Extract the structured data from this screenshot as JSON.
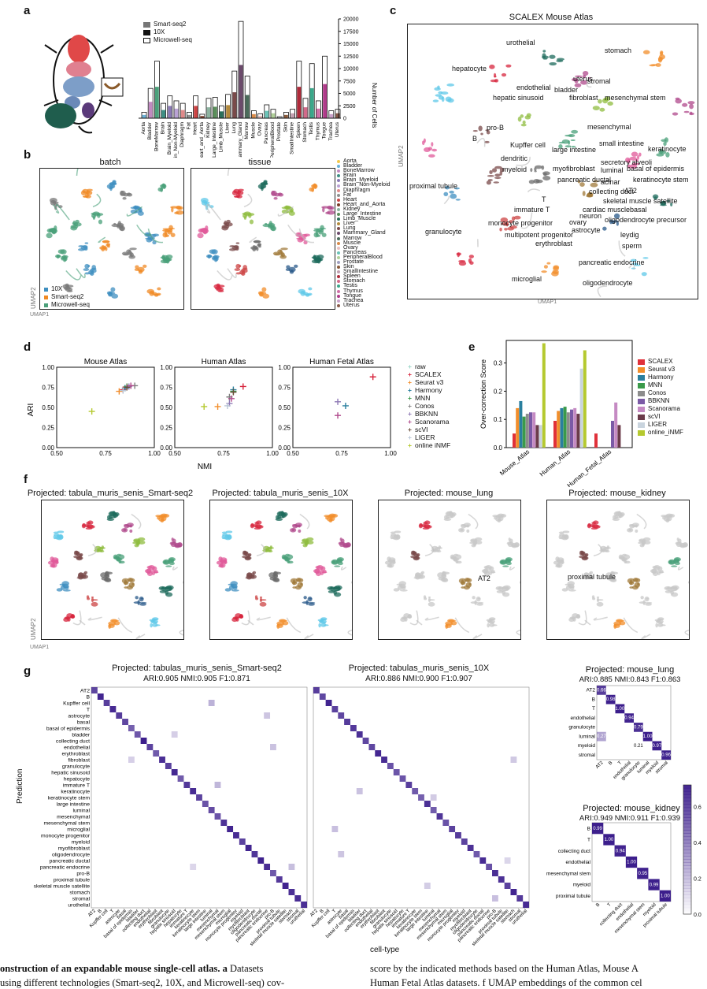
{
  "panels": {
    "a": "a",
    "b": "b",
    "c": "c",
    "d": "d",
    "e": "e",
    "f": "f",
    "g": "g"
  },
  "panel_a": {
    "legend": [
      "Smart-seq2",
      "10X",
      "Microwell-seq"
    ],
    "ylabel": "Number of Cells",
    "yticks": [
      "0",
      "2500",
      "5000",
      "7500",
      "10000",
      "12500",
      "15000",
      "17500",
      "20000"
    ],
    "tissues": [
      "Aorta",
      "Bladder",
      "BoneMarrow",
      "Brain",
      "Brain_Myeloid",
      "Brain_Non-Myeloid",
      "Diaphragm",
      "Fat",
      "Heart",
      "Heart_and_Aorta",
      "Kidney",
      "Large_Intestine",
      "Limb_Muscle",
      "Liver",
      "Lung",
      "Mammary_Gland",
      "Marrow",
      "Muscle",
      "Ovary",
      "Pancreas",
      "PeripheralBlood",
      "Prostate",
      "Skin",
      "SmallIntestine",
      "Spleen",
      "Stomach",
      "Testis",
      "Thymus",
      "Tongue",
      "Trachea",
      "Uterus"
    ]
  },
  "panel_b": {
    "titles": [
      "batch",
      "tissue"
    ],
    "batch_legend": [
      "10X",
      "Smart-seq2",
      "Microwell-seq"
    ],
    "xlabel": "UMAP1",
    "ylabel": "UMAP2",
    "tissue_legend": [
      "Aorta",
      "Bladder",
      "BoneMarrow",
      "Brain",
      "Brain_Myeloid",
      "Brain_Non-Myeloid",
      "Diaphragm",
      "Fat",
      "Heart",
      "Heart_and_Aorta",
      "Kidney",
      "Large_Intestine",
      "Limb_Muscle",
      "Liver",
      "Lung",
      "Mammary_Gland",
      "Marrow",
      "Muscle",
      "Ovary",
      "Pancreas",
      "PeripheralBlood",
      "Prostate",
      "Skin",
      "SmallIntestine",
      "Spleen",
      "Stomach",
      "Testis",
      "Thymus",
      "Tongue",
      "Trachea",
      "Uterus"
    ]
  },
  "panel_c": {
    "title": "SCALEX Mouse Atlas",
    "xlabel": "UMAP1",
    "ylabel": "UMAP2",
    "labels": [
      "urothelial",
      "stomach",
      "hepatocyte",
      "endothelial",
      "uterus",
      "stromal",
      "bladder",
      "fibroblast",
      "mesenchymal stem",
      "hepatic sinusoid",
      "mesenchymal",
      "pro-B",
      "B",
      "Kupffer cell",
      "small intestine",
      "large intestine",
      "keratinocyte",
      "secretory alveoli",
      "dendritic",
      "myofibroblast",
      "luminal",
      "basal of epidermis",
      "myeloid",
      "pancreatic ductal",
      "acinar",
      "keratinocyte stem",
      "proximal tubule",
      "collecting duct",
      "AT2",
      "T",
      "skeletal muscle satellite",
      "cardiac muscle",
      "immature T",
      "neuron",
      "basal",
      "ovary",
      "oligodendrocyte precursor",
      "monocyte progenitor",
      "astrocyte",
      "granulocyte",
      "leydig",
      "multipotent progenitor",
      "sperm",
      "erythroblast",
      "pancreatic endocrine",
      "microglial",
      "oligodendrocyte"
    ]
  },
  "panel_d": {
    "titles": [
      "Mouse Atlas",
      "Human Atlas",
      "Human Fetal Atlas"
    ],
    "xlabel": "NMI",
    "ylabel": "ARI",
    "xticks": [
      "0.50",
      "0.75",
      "1.00"
    ],
    "yticks": [
      "0.00",
      "0.25",
      "0.50",
      "0.75",
      "1.00"
    ],
    "legend": [
      "raw",
      "SCALEX",
      "Seurat v3",
      "Harmony",
      "MNN",
      "Conos",
      "BBKNN",
      "Scanorama",
      "scVI",
      "LIGER",
      "online iNMF"
    ],
    "colors": [
      "#9bd7c8",
      "#d7263d",
      "#f28e2b",
      "#2a7f9e",
      "#3a9a4a",
      "#7f7f7f",
      "#8e79b5",
      "#b04a8c",
      "#6b4f3a",
      "#b9c6d6",
      "#b5c92f"
    ]
  },
  "panel_e": {
    "ylabel": "Over-correction Score",
    "yticks": [
      "0.0",
      "0.1",
      "0.2",
      "0.3"
    ],
    "categories": [
      "Mouse_Atlas",
      "Human_Atlas",
      "Human_Fetal_Atlas"
    ],
    "legend": [
      "SCALEX",
      "Seurat v3",
      "Harmony",
      "MNN",
      "Conos",
      "BBKNN",
      "Scanorama",
      "scVI",
      "LIGER",
      "online_iNMF"
    ],
    "colors": [
      "#e0313a",
      "#f28e2b",
      "#2a7f9e",
      "#3a9a4a",
      "#8c8c8c",
      "#7b5aa6",
      "#c58ac3",
      "#6b3b4a",
      "#c9d4de",
      "#b5c92f"
    ]
  },
  "panel_f": {
    "titles": [
      "Projected: tabula_muris_senis_Smart-seq2",
      "Projected: tabula_muris_senis_10X",
      "Projected: mouse_lung",
      "Projected: mouse_kidney"
    ],
    "annotations": [
      "AT2",
      "proximal tubule"
    ],
    "xlabel": "UMAP1",
    "ylabel": "UMAP2"
  },
  "panel_g": {
    "m1_title": "Projected: tabulas_muris_senis_Smart-seq2",
    "m1_metrics": "ARI:0.905   NMI:0.905   F1:0.871",
    "m2_title": "Projected: tabulas_muris_senis_10X",
    "m2_metrics": "ARI:0.886   NMI:0.900   F1:0.907",
    "m3_title": "Projected: mouse_lung",
    "m3_metrics": "ARI:0.885   NMI:0.843   F1:0.863",
    "m4_title": "Projected: mouse_kidney",
    "m4_metrics": "ARI:0.949   NMI:0.911   F1:0.939",
    "ylabel": "Prediction",
    "xlabel": "cell-type",
    "rows": [
      "AT2",
      "B",
      "Kupffer cell",
      "T",
      "astrocyte",
      "basal",
      "basal of epidermis",
      "bladder",
      "collecting duct",
      "endothelial",
      "erythroblast",
      "fibroblast",
      "granulocyte",
      "hepatic sinusoid",
      "hepatocyte",
      "immature T",
      "keratinocyte",
      "keratinocyte stem",
      "large intestine",
      "luminal",
      "mesenchymal",
      "mesenchymal stem",
      "microglial",
      "monocyte progenitor",
      "myeloid",
      "myofibroblast",
      "oligodendrocyte",
      "pancreatic ductal",
      "pancreatic endocrine",
      "pro-B",
      "proximal tubule",
      "skeletal muscle satellite",
      "stomach",
      "stromal",
      "urothelial"
    ],
    "lung_rows": [
      "AT2",
      "B",
      "T",
      "endothelial",
      "granulocyte",
      "luminal",
      "myeloid",
      "stromal"
    ],
    "lung_diag": [
      "0.66",
      "0.98",
      "1.00",
      "0.94",
      "0.79",
      "1.00",
      "0.97",
      "0.96"
    ],
    "lung_off": [
      "0.27",
      "0.21"
    ],
    "kidney_rows": [
      "B",
      "T",
      "collecting duct",
      "endothelial",
      "mesenchymal stem",
      "myeloid",
      "proximal tubule"
    ],
    "kidney_diag": [
      "0.99",
      "1.00",
      "0.94",
      "1.00",
      "0.95",
      "0.99",
      "1.00"
    ],
    "colorbar_ticks": [
      "0.0",
      "0.2",
      "0.4",
      "0.6"
    ]
  },
  "caption": {
    "left_bold": "onstruction of an expandable mouse single-cell atlas.",
    "left_a": " a",
    "left_rest": " Datasets",
    "left_line2": "using different technologies (Smart-seq2, 10X, and Microwell-seq) cov-",
    "right_line1": "score by the indicated methods based on the Human Atlas, Mouse A",
    "right_line2": "Human Fetal Atlas datasets. f UMAP embeddings of the common cel"
  }
}
